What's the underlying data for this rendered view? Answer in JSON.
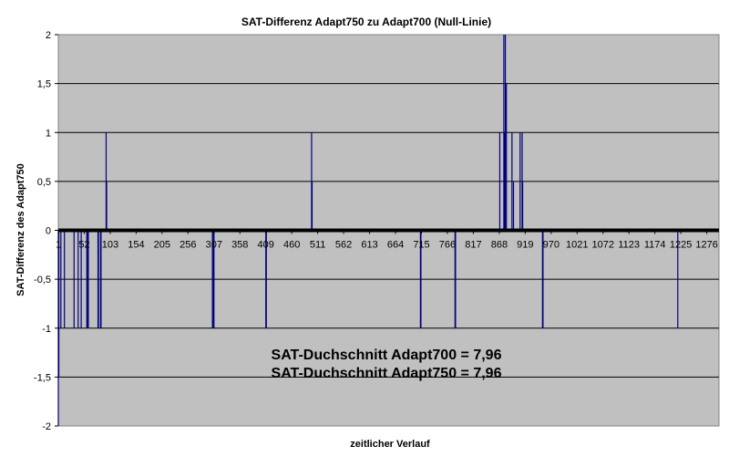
{
  "chart_data": {
    "type": "line",
    "title": "SAT-Differenz Adapt750 zu Adapt700 (Null-Linie)",
    "xlabel": "zeitlicher Verlauf",
    "ylabel": "SAT-Differenz des Adapt750",
    "ylim": [
      -2,
      2
    ],
    "yticks": [
      2,
      1.5,
      1,
      0.5,
      0,
      -0.5,
      -1,
      -1.5,
      -2
    ],
    "ytick_labels": [
      "2",
      "1,5",
      "1",
      "0,5",
      "0",
      "-0,5",
      "-1",
      "-1,5",
      "-2"
    ],
    "xlim": [
      1,
      1300
    ],
    "xticks": [
      1,
      52,
      103,
      154,
      205,
      256,
      307,
      358,
      409,
      460,
      511,
      562,
      613,
      664,
      715,
      766,
      817,
      868,
      919,
      970,
      1021,
      1072,
      1123,
      1174,
      1225,
      1276
    ],
    "grid": true,
    "legend": "none",
    "series": [
      {
        "values_note": "",
        "spikes": [
          {
            "x": 1,
            "y": -2
          },
          {
            "x": 2,
            "y": -1.5
          },
          {
            "x": 6,
            "y": -1
          },
          {
            "x": 13,
            "y": -1
          },
          {
            "x": 32,
            "y": -1
          },
          {
            "x": 40,
            "y": -1
          },
          {
            "x": 46,
            "y": -1
          },
          {
            "x": 57,
            "y": -1
          },
          {
            "x": 58,
            "y": -1
          },
          {
            "x": 60,
            "y": -1
          },
          {
            "x": 79,
            "y": -1
          },
          {
            "x": 80,
            "y": -1
          },
          {
            "x": 84,
            "y": -1
          },
          {
            "x": 85,
            "y": -1
          },
          {
            "x": 95,
            "y": 1
          },
          {
            "x": 96,
            "y": 0.5
          },
          {
            "x": 304,
            "y": -1
          },
          {
            "x": 306,
            "y": -1
          },
          {
            "x": 307,
            "y": -1
          },
          {
            "x": 409,
            "y": -1
          },
          {
            "x": 410,
            "y": -1
          },
          {
            "x": 499,
            "y": 1
          },
          {
            "x": 500,
            "y": 0.5
          },
          {
            "x": 713,
            "y": -1
          },
          {
            "x": 714,
            "y": -1
          },
          {
            "x": 781,
            "y": -1
          },
          {
            "x": 782,
            "y": -1
          },
          {
            "x": 869,
            "y": 1
          },
          {
            "x": 877,
            "y": 2
          },
          {
            "x": 879,
            "y": 1
          },
          {
            "x": 880,
            "y": 2
          },
          {
            "x": 882,
            "y": 1.5
          },
          {
            "x": 893,
            "y": 1
          },
          {
            "x": 896,
            "y": 0.5
          },
          {
            "x": 909,
            "y": 1
          },
          {
            "x": 913,
            "y": 1
          },
          {
            "x": 914,
            "y": 0.5
          },
          {
            "x": 953,
            "y": -1
          },
          {
            "x": 954,
            "y": -1
          },
          {
            "x": 1219,
            "y": -1
          }
        ],
        "baseline": 0,
        "color": "#000080"
      }
    ],
    "annotations": [
      "SAT-Duchschnitt Adapt700 = 7,96",
      "SAT-Duchschnitt Adapt750 = 7,96"
    ]
  },
  "colors": {
    "plot_bg": "#c0c0c0",
    "line": "#000080",
    "zero_line": "#000000",
    "grid": "#000000",
    "page_bg": "#ffffff"
  }
}
